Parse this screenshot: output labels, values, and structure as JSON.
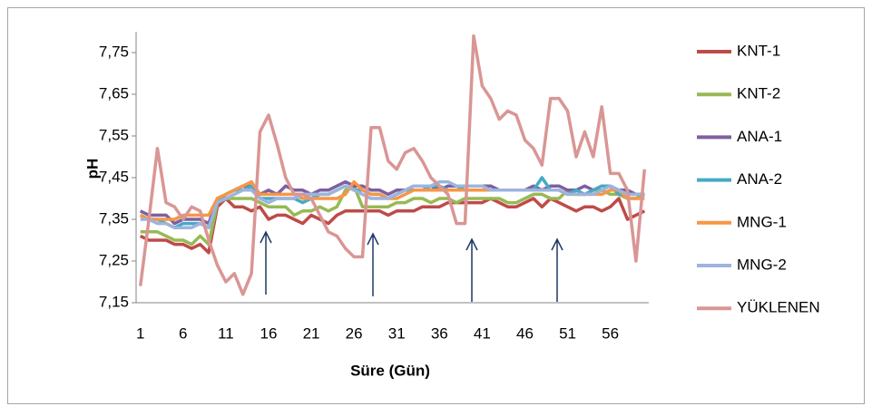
{
  "chart_data": {
    "type": "line",
    "xlabel": "Süre (Gün)",
    "ylabel": "pH",
    "categories": [
      "1",
      null,
      null,
      null,
      null,
      "6",
      null,
      null,
      null,
      null,
      "11",
      null,
      null,
      null,
      null,
      "16",
      null,
      null,
      null,
      null,
      "21",
      null,
      null,
      null,
      null,
      "26",
      null,
      null,
      null,
      null,
      "31",
      null,
      null,
      null,
      null,
      "36",
      null,
      null,
      null,
      null,
      "41",
      null,
      null,
      null,
      null,
      "46",
      null,
      null,
      null,
      null,
      "51",
      null,
      null,
      null,
      null,
      "56",
      null,
      null,
      null,
      null
    ],
    "ylim": [
      7.15,
      7.8
    ],
    "yticks": [
      {
        "value": 7.15,
        "label": "7,15"
      },
      {
        "value": 7.25,
        "label": "7,25"
      },
      {
        "value": 7.35,
        "label": "7,35"
      },
      {
        "value": 7.45,
        "label": "7,45"
      },
      {
        "value": 7.55,
        "label": "7,55"
      },
      {
        "value": 7.65,
        "label": "7,65"
      },
      {
        "value": 7.75,
        "label": "7,75"
      }
    ],
    "grid": false,
    "legend": "right",
    "series": [
      {
        "name": "KNT-1",
        "color": "#be4b48",
        "values": [
          7.31,
          7.3,
          7.3,
          7.3,
          7.29,
          7.29,
          7.28,
          7.29,
          7.27,
          7.38,
          7.4,
          7.38,
          7.38,
          7.37,
          7.38,
          7.35,
          7.36,
          7.36,
          7.35,
          7.34,
          7.36,
          7.35,
          7.34,
          7.36,
          7.37,
          7.37,
          7.37,
          7.37,
          7.37,
          7.36,
          7.37,
          7.37,
          7.37,
          7.38,
          7.38,
          7.38,
          7.39,
          7.39,
          7.39,
          7.39,
          7.39,
          7.4,
          7.39,
          7.38,
          7.38,
          7.39,
          7.4,
          7.38,
          7.4,
          7.39,
          7.38,
          7.37,
          7.38,
          7.38,
          7.37,
          7.38,
          7.4,
          7.35,
          7.36,
          7.37
        ]
      },
      {
        "name": "KNT-2",
        "color": "#98b954",
        "values": [
          7.32,
          7.32,
          7.32,
          7.31,
          7.3,
          7.3,
          7.29,
          7.31,
          7.29,
          7.39,
          7.4,
          7.4,
          7.4,
          7.4,
          7.39,
          7.38,
          7.38,
          7.38,
          7.36,
          7.37,
          7.37,
          7.38,
          7.37,
          7.38,
          7.42,
          7.43,
          7.38,
          7.38,
          7.38,
          7.38,
          7.39,
          7.39,
          7.4,
          7.4,
          7.39,
          7.4,
          7.4,
          7.39,
          7.4,
          7.4,
          7.4,
          7.4,
          7.4,
          7.39,
          7.39,
          7.4,
          7.41,
          7.41,
          7.4,
          7.4,
          7.42,
          7.41,
          7.41,
          7.42,
          7.42,
          7.41,
          7.41,
          7.4,
          7.4,
          7.41
        ]
      },
      {
        "name": "ANA-1",
        "color": "#7d60a0",
        "values": [
          7.37,
          7.36,
          7.36,
          7.36,
          7.34,
          7.35,
          7.35,
          7.35,
          7.34,
          7.4,
          7.41,
          7.42,
          7.43,
          7.43,
          7.41,
          7.42,
          7.41,
          7.43,
          7.42,
          7.42,
          7.41,
          7.42,
          7.42,
          7.43,
          7.44,
          7.43,
          7.43,
          7.42,
          7.42,
          7.41,
          7.42,
          7.42,
          7.43,
          7.43,
          7.43,
          7.42,
          7.43,
          7.43,
          7.43,
          7.43,
          7.43,
          7.43,
          7.42,
          7.42,
          7.42,
          7.42,
          7.43,
          7.42,
          7.43,
          7.43,
          7.42,
          7.42,
          7.43,
          7.42,
          7.43,
          7.43,
          7.42,
          7.42,
          7.41,
          7.41
        ]
      },
      {
        "name": "ANA-2",
        "color": "#46aac5",
        "values": [
          7.36,
          7.35,
          7.35,
          7.34,
          7.33,
          7.34,
          7.34,
          7.34,
          7.33,
          7.39,
          7.41,
          7.42,
          7.42,
          7.43,
          7.4,
          7.4,
          7.4,
          7.4,
          7.4,
          7.39,
          7.4,
          7.41,
          7.41,
          7.42,
          7.43,
          7.42,
          7.42,
          7.41,
          7.41,
          7.4,
          7.41,
          7.42,
          7.42,
          7.42,
          7.43,
          7.43,
          7.42,
          7.42,
          7.43,
          7.43,
          7.43,
          7.42,
          7.42,
          7.42,
          7.42,
          7.42,
          7.42,
          7.45,
          7.42,
          7.42,
          7.41,
          7.42,
          7.41,
          7.42,
          7.43,
          7.43,
          7.41,
          7.41,
          7.41,
          7.41
        ]
      },
      {
        "name": "MNG-1",
        "color": "#f79646",
        "values": [
          7.36,
          7.35,
          7.35,
          7.35,
          7.35,
          7.36,
          7.36,
          7.36,
          7.36,
          7.4,
          7.41,
          7.42,
          7.43,
          7.44,
          7.41,
          7.41,
          7.41,
          7.41,
          7.41,
          7.4,
          7.4,
          7.4,
          7.4,
          7.4,
          7.41,
          7.44,
          7.42,
          7.41,
          7.41,
          7.4,
          7.4,
          7.41,
          7.42,
          7.42,
          7.42,
          7.42,
          7.42,
          7.42,
          7.42,
          7.42,
          7.42,
          7.42,
          7.42,
          7.42,
          7.42,
          7.42,
          7.42,
          7.42,
          7.42,
          7.42,
          7.41,
          7.41,
          7.41,
          7.41,
          7.41,
          7.42,
          7.42,
          7.4,
          7.4,
          7.4
        ]
      },
      {
        "name": "MNG-2",
        "color": "#9db4dc",
        "values": [
          7.35,
          7.35,
          7.34,
          7.34,
          7.33,
          7.33,
          7.33,
          7.34,
          7.33,
          7.39,
          7.4,
          7.41,
          7.42,
          7.42,
          7.4,
          7.39,
          7.4,
          7.4,
          7.4,
          7.41,
          7.41,
          7.41,
          7.41,
          7.42,
          7.43,
          7.42,
          7.41,
          7.4,
          7.4,
          7.4,
          7.41,
          7.42,
          7.43,
          7.43,
          7.43,
          7.44,
          7.44,
          7.43,
          7.43,
          7.43,
          7.43,
          7.42,
          7.42,
          7.42,
          7.42,
          7.42,
          7.42,
          7.42,
          7.42,
          7.42,
          7.41,
          7.41,
          7.41,
          7.41,
          7.42,
          7.43,
          7.42,
          7.41,
          7.41,
          7.41
        ]
      },
      {
        "name": "YÜKLENEN",
        "color": "#d99694",
        "values": [
          7.19,
          7.35,
          7.52,
          7.39,
          7.38,
          7.35,
          7.38,
          7.37,
          7.3,
          7.24,
          7.2,
          7.22,
          7.17,
          7.22,
          7.56,
          7.6,
          7.53,
          7.45,
          7.41,
          7.41,
          7.4,
          7.36,
          7.32,
          7.31,
          7.28,
          7.26,
          7.26,
          7.57,
          7.57,
          7.49,
          7.47,
          7.51,
          7.52,
          7.49,
          7.45,
          7.43,
          7.41,
          7.34,
          7.34,
          7.79,
          7.67,
          7.64,
          7.59,
          7.61,
          7.6,
          7.54,
          7.52,
          7.48,
          7.64,
          7.64,
          7.61,
          7.5,
          7.56,
          7.5,
          7.62,
          7.46,
          7.46,
          7.42,
          7.25,
          7.47
        ]
      }
    ]
  }
}
